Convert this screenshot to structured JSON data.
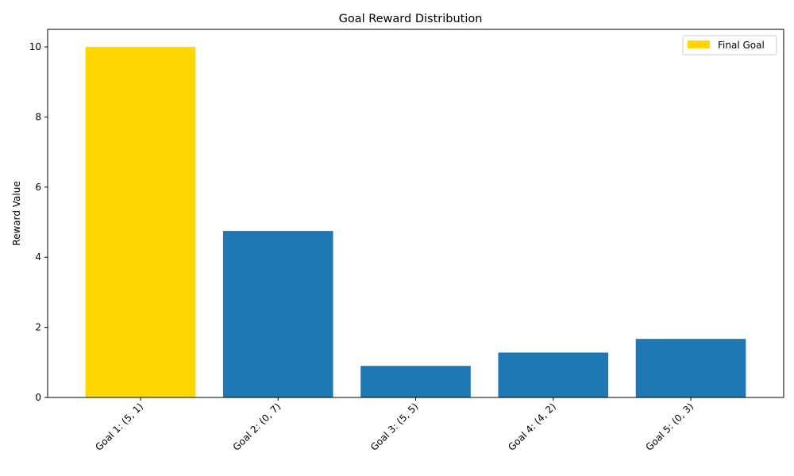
{
  "chart_data": {
    "type": "bar",
    "title": "Goal Reward Distribution",
    "xlabel": "",
    "ylabel": "Reward Value",
    "categories": [
      "Goal 1: (5, 1)",
      "Goal 2: (0, 7)",
      "Goal 3: (5, 5)",
      "Goal 4: (4, 2)",
      "Goal 5: (0, 3)"
    ],
    "values": [
      10.0,
      4.75,
      0.9,
      1.28,
      1.67
    ],
    "ylim": [
      0,
      10.5
    ],
    "yticks": [
      0,
      2,
      4,
      6,
      8,
      10
    ],
    "grid": false,
    "legend": {
      "placement": "top-right",
      "entries": [
        {
          "label": "Final Goal",
          "color": "#FFD700"
        }
      ]
    },
    "highlight_index": 0,
    "colors": {
      "default": "#1f77b4",
      "highlight": "#FFD700"
    }
  }
}
